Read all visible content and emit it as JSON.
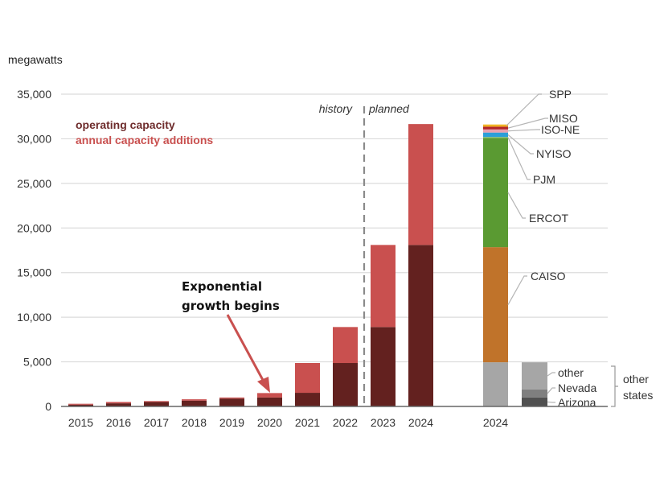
{
  "chart_data": {
    "type": "bar",
    "title": "",
    "ylabel": "megawatts",
    "xlabel": "",
    "ylim": [
      0,
      35000
    ],
    "yticks": [
      0,
      5000,
      10000,
      15000,
      20000,
      25000,
      30000,
      35000
    ],
    "ytick_labels": [
      "0",
      "5,000",
      "10,000",
      "15,000",
      "20,000",
      "25,000",
      "30,000",
      "35,000"
    ],
    "grid": true,
    "legend": {
      "placement": "top-left",
      "entries": [
        {
          "name": "operating capacity",
          "color": "#63211f"
        },
        {
          "name": "annual capacity additions",
          "color": "#c9504f"
        }
      ]
    },
    "categories": [
      "2015",
      "2016",
      "2017",
      "2018",
      "2019",
      "2020",
      "2021",
      "2022",
      "2023",
      "2024"
    ],
    "series": [
      {
        "name": "operating capacity",
        "color": "#63211f",
        "values": [
          200,
          350,
          500,
          650,
          880,
          1000,
          1530,
          4870,
          8900,
          18100
        ]
      },
      {
        "name": "annual capacity additions",
        "color": "#c9504f",
        "values": [
          100,
          150,
          100,
          150,
          120,
          500,
          3340,
          4030,
          9200,
          13550
        ]
      }
    ],
    "era_labels": {
      "history": "history",
      "planned": "planned",
      "divider_between": [
        "2022",
        "2023"
      ]
    },
    "annotation": {
      "text_line1": "Exponential",
      "text_line2": "growth begins",
      "points_to": "2020"
    },
    "breakdown_by_region": {
      "category": "2024",
      "segments": [
        {
          "name": "other states",
          "value": 4950,
          "color": "#a6a6a6"
        },
        {
          "name": "CAISO",
          "value": 12900,
          "color": "#c0732a"
        },
        {
          "name": "ERCOT",
          "value": 12250,
          "color": "#5a9a32"
        },
        {
          "name": "PJM",
          "value": 100,
          "color": "#8cc063"
        },
        {
          "name": "NYISO",
          "value": 500,
          "color": "#2b9fd9"
        },
        {
          "name": "ISO-NE",
          "value": 350,
          "color": "#e9a1b0"
        },
        {
          "name": "MISO",
          "value": 300,
          "color": "#b3262a"
        },
        {
          "name": "SPP",
          "value": 250,
          "color": "#f0b323"
        }
      ]
    },
    "breakdown_other_states": {
      "group_label_line1": "other",
      "group_label_line2": "states",
      "segments": [
        {
          "name": "Arizona",
          "value": 1000,
          "color": "#505050"
        },
        {
          "name": "Nevada",
          "value": 900,
          "color": "#7f7f7f"
        },
        {
          "name": "other",
          "value": 3050,
          "color": "#a6a6a6"
        }
      ]
    }
  }
}
